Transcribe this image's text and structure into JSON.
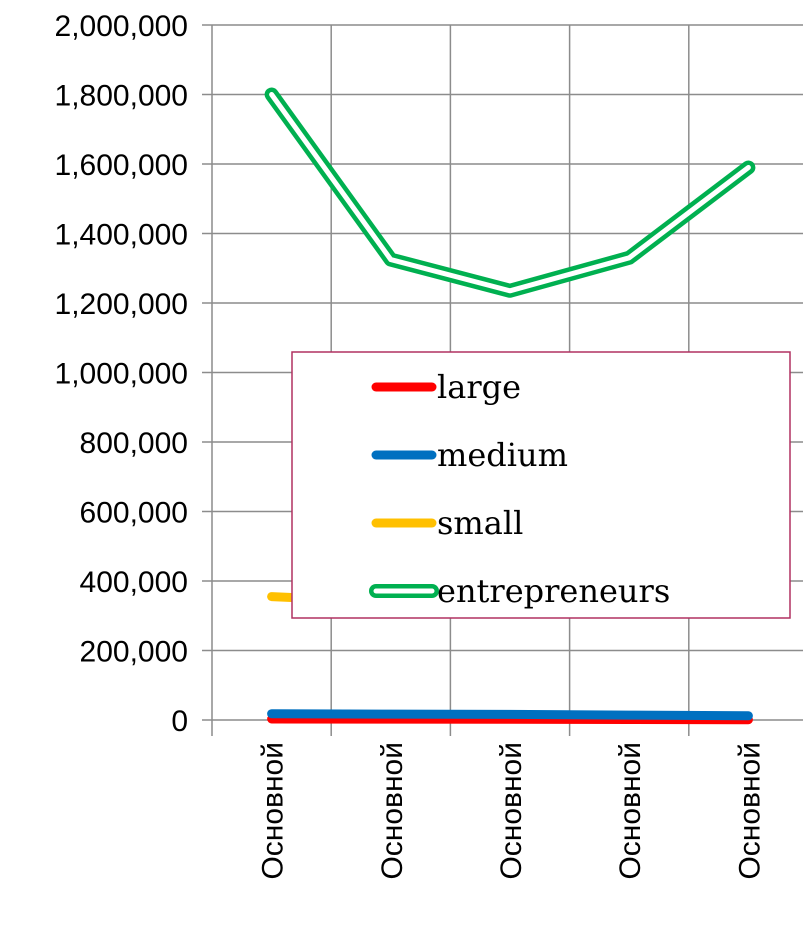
{
  "chart_data": {
    "type": "line",
    "title": "",
    "xlabel": "",
    "ylabel": "",
    "categories": [
      "Основной",
      "Основной",
      "Основной",
      "Основной",
      "Основной"
    ],
    "ylim": [
      0,
      2000000
    ],
    "yticks": [
      0,
      200000,
      400000,
      600000,
      800000,
      1000000,
      1200000,
      1400000,
      1600000,
      1800000,
      2000000
    ],
    "ytick_labels": [
      "0",
      "200,000",
      "400,000",
      "600,000",
      "800,000",
      "1,000,000",
      "1,200,000",
      "1,400,000",
      "1,600,000",
      "1,800,000",
      "2,000,000"
    ],
    "grid": true,
    "legend_position": "center-right",
    "series": [
      {
        "name": "large",
        "color": "#ff0000",
        "style": "solid",
        "values": [
          3000,
          2500,
          2000,
          1500,
          1000
        ]
      },
      {
        "name": "medium",
        "color": "#0070c0",
        "style": "solid",
        "values": [
          18000,
          17000,
          16000,
          14000,
          12000
        ]
      },
      {
        "name": "small",
        "color": "#ffc000",
        "style": "solid",
        "values": [
          355000,
          340000,
          330000,
          330000,
          340000
        ]
      },
      {
        "name": "entrepreneurs",
        "color": "#00b050",
        "style": "double",
        "values": [
          1800000,
          1325000,
          1235000,
          1330000,
          1590000
        ]
      }
    ]
  }
}
